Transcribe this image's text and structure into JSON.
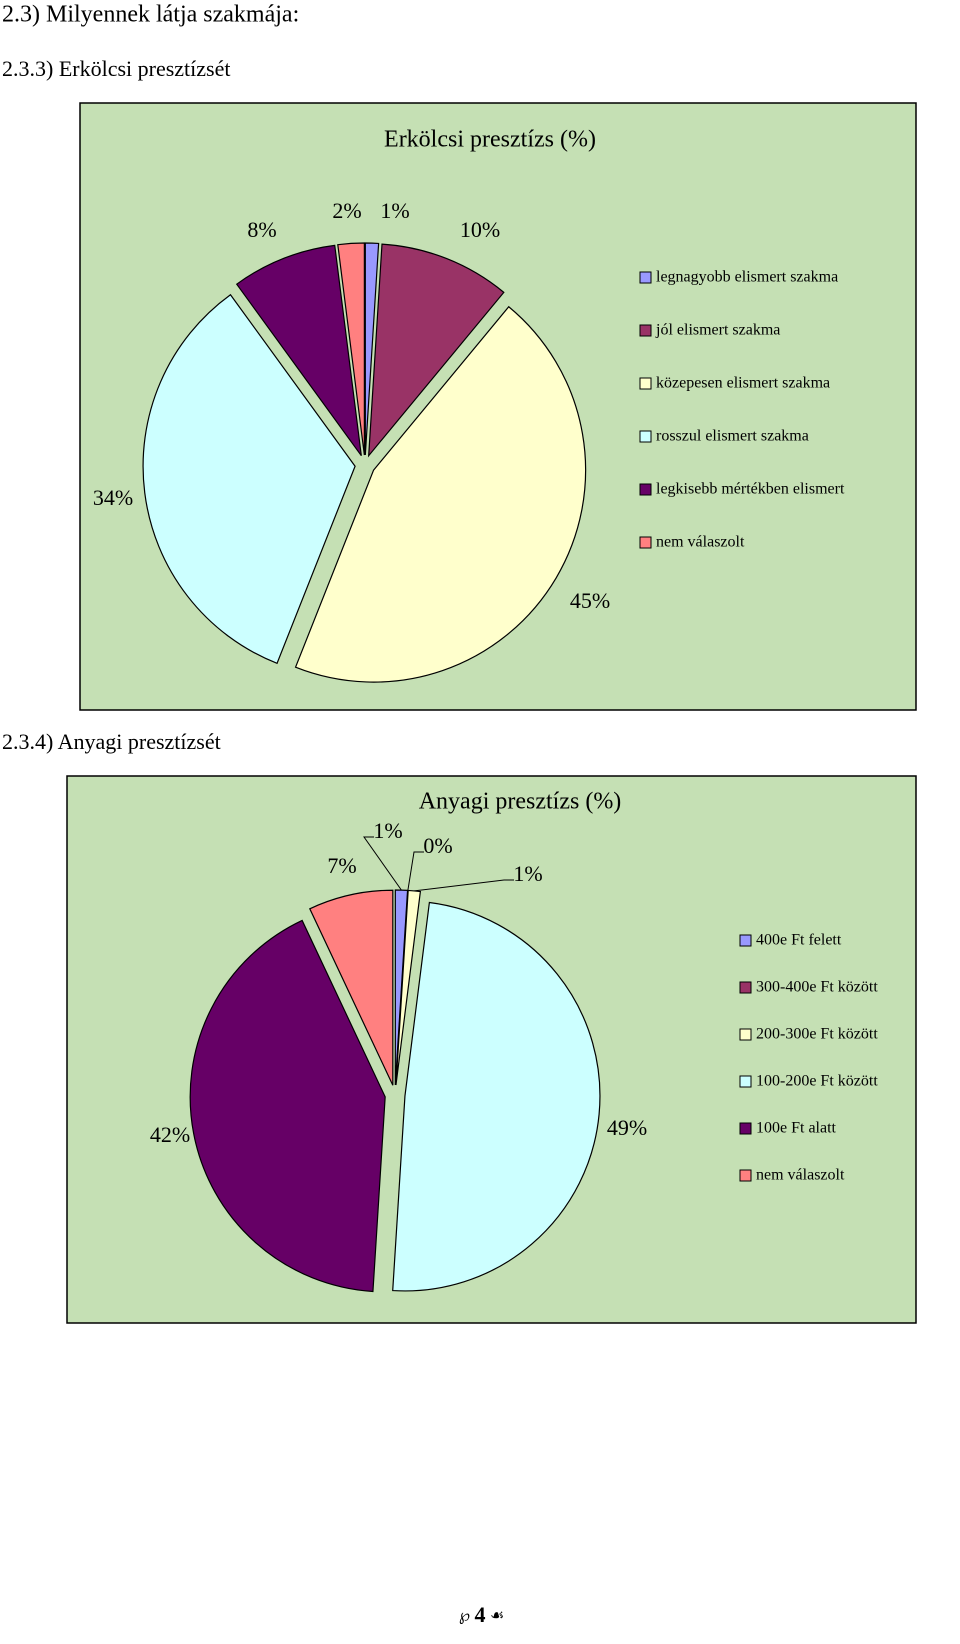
{
  "heading": "2.3) Milyennek látja szakmája:",
  "section_titles": [
    "2.3.3) Erkölcsi presztízsét",
    "2.3.4) Anyagi presztízsét"
  ],
  "page_number": "4",
  "chart_data": [
    {
      "type": "pie",
      "title": "Erkölcsi presztízs (%)",
      "categories": [
        "legnagyobb elismert szakma",
        "jól elismert szakma",
        "közepesen elismert szakma",
        "rosszul elismert szakma",
        "legkisebb mértékben elismert",
        "nem válaszolt"
      ],
      "values": [
        1,
        10,
        45,
        34,
        8,
        2
      ],
      "value_labels": [
        "1%",
        "10%",
        "45%",
        "34%",
        "8%",
        "2%"
      ],
      "colors": [
        "#9999ff",
        "#993366",
        "#ffffcc",
        "#ccffff",
        "#660066",
        "#ff8080"
      ]
    },
    {
      "type": "pie",
      "title": "Anyagi presztízs (%)",
      "categories": [
        "400e Ft felett",
        "300-400e Ft között",
        "200-300e Ft között",
        "100-200e Ft között",
        "100e Ft alatt",
        "nem válaszolt"
      ],
      "values": [
        1,
        0,
        1,
        49,
        42,
        7
      ],
      "value_labels": [
        "1%",
        "0%",
        "1%",
        "49%",
        "42%",
        "7%"
      ],
      "colors": [
        "#9999ff",
        "#993366",
        "#ffffcc",
        "#ccffff",
        "#660066",
        "#ff8080"
      ]
    }
  ]
}
